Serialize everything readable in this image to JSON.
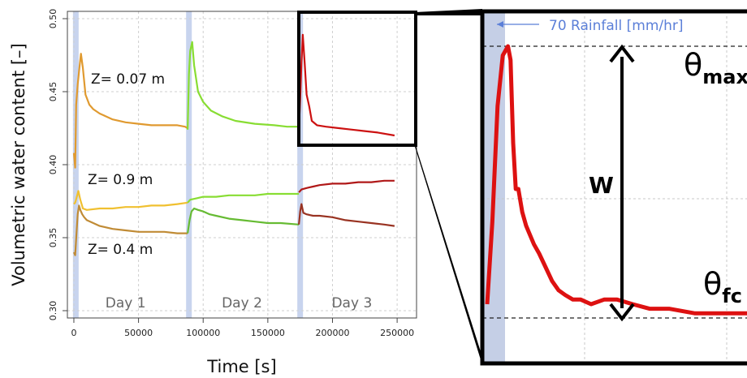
{
  "chart_data": [
    {
      "type": "line",
      "xlabel": "Time [s]",
      "ylabel": "Volumetric water content [–]",
      "xlim": [
        -5000,
        265000
      ],
      "ylim": [
        0.295,
        0.505
      ],
      "xticks": [
        0,
        50000,
        100000,
        150000,
        200000,
        250000
      ],
      "xtick_labels": [
        "0",
        "50000",
        "100000",
        "150000",
        "200000",
        "250000"
      ],
      "yticks": [
        0.3,
        0.35,
        0.4,
        0.45,
        0.5
      ],
      "ytick_labels": [
        "0.30",
        "0.35",
        "0.40",
        "0.45",
        "0.50"
      ],
      "grid": true,
      "rain_events": [
        1500,
        89000,
        175000
      ],
      "day_labels": [
        {
          "label": "Day 1",
          "x": 40000
        },
        {
          "label": "Day 2",
          "x": 130000
        },
        {
          "label": "Day 3",
          "x": 215000
        }
      ],
      "series": [
        {
          "name": "Z= 0.07 m",
          "segments": [
            {
              "color": "#e09a30",
              "x": [
                0,
                1000,
                1800,
                3000,
                4500,
                5500,
                7000,
                9000,
                12000,
                15000,
                20000,
                25000,
                30000,
                40000,
                50000,
                60000,
                70000,
                80000,
                86000,
                88000
              ],
              "y": [
                0.408,
                0.398,
                0.441,
                0.455,
                0.468,
                0.476,
                0.466,
                0.448,
                0.441,
                0.438,
                0.435,
                0.433,
                0.431,
                0.429,
                0.428,
                0.427,
                0.427,
                0.427,
                0.426,
                0.425
              ]
            },
            {
              "color": "#88dd33",
              "x": [
                88000,
                89000,
                90000,
                91500,
                93000,
                96000,
                100000,
                106000,
                115000,
                125000,
                140000,
                155000,
                165000,
                172000,
                174000
              ],
              "y": [
                0.424,
                0.462,
                0.478,
                0.484,
                0.468,
                0.45,
                0.443,
                0.437,
                0.433,
                0.43,
                0.428,
                0.427,
                0.426,
                0.426,
                0.426
              ]
            },
            {
              "color": "#cc1111",
              "x": [
                174000,
                175000,
                176000,
                177000,
                178500,
                180000,
                182000,
                184000,
                188000,
                195000,
                205000,
                215000,
                225000,
                235000,
                248000
              ],
              "y": [
                0.424,
                0.445,
                0.47,
                0.489,
                0.47,
                0.448,
                0.44,
                0.43,
                0.427,
                0.426,
                0.425,
                0.424,
                0.423,
                0.422,
                0.42
              ]
            }
          ]
        },
        {
          "name": "Z= 0.9 m",
          "segments": [
            {
              "color": "#f0c030",
              "x": [
                0,
                1000,
                2000,
                3500,
                5000,
                7000,
                10000,
                20000,
                30000,
                40000,
                50000,
                60000,
                70000,
                80000,
                88000
              ],
              "y": [
                0.373,
                0.374,
                0.377,
                0.382,
                0.376,
                0.37,
                0.369,
                0.37,
                0.37,
                0.371,
                0.371,
                0.372,
                0.372,
                0.373,
                0.374
              ]
            },
            {
              "color": "#88dd33",
              "x": [
                88000,
                90000,
                95000,
                100000,
                110000,
                120000,
                130000,
                140000,
                150000,
                160000,
                174000
              ],
              "y": [
                0.374,
                0.376,
                0.377,
                0.378,
                0.378,
                0.379,
                0.379,
                0.379,
                0.38,
                0.38,
                0.38
              ]
            },
            {
              "color": "#b01818",
              "x": [
                174000,
                176000,
                180000,
                185000,
                190000,
                200000,
                210000,
                220000,
                230000,
                240000,
                248000
              ],
              "y": [
                0.381,
                0.383,
                0.384,
                0.385,
                0.386,
                0.387,
                0.387,
                0.388,
                0.388,
                0.389,
                0.389
              ]
            }
          ]
        },
        {
          "name": "Z= 0.4 m",
          "segments": [
            {
              "color": "#c08b35",
              "x": [
                0,
                1000,
                2000,
                3000,
                4000,
                5000,
                6500,
                8000,
                10000,
                15000,
                20000,
                30000,
                40000,
                50000,
                60000,
                70000,
                80000,
                88000
              ],
              "y": [
                0.34,
                0.338,
                0.352,
                0.366,
                0.372,
                0.369,
                0.366,
                0.364,
                0.362,
                0.36,
                0.358,
                0.356,
                0.355,
                0.354,
                0.354,
                0.354,
                0.353,
                0.353
              ]
            },
            {
              "color": "#66bb33",
              "x": [
                88000,
                89500,
                91000,
                93000,
                96000,
                100000,
                105000,
                110000,
                120000,
                130000,
                140000,
                150000,
                160000,
                174000
              ],
              "y": [
                0.353,
                0.362,
                0.368,
                0.37,
                0.369,
                0.368,
                0.366,
                0.365,
                0.363,
                0.362,
                0.361,
                0.36,
                0.36,
                0.359
              ]
            },
            {
              "color": "#993322",
              "x": [
                174000,
                175000,
                176000,
                177500,
                180000,
                185000,
                190000,
                200000,
                210000,
                220000,
                230000,
                240000,
                248000
              ],
              "y": [
                0.359,
                0.368,
                0.373,
                0.367,
                0.366,
                0.365,
                0.365,
                0.364,
                0.362,
                0.361,
                0.36,
                0.359,
                0.358
              ]
            }
          ]
        }
      ],
      "annotations": [
        "Z= 0.07 m",
        "Z= 0.9 m",
        "Z= 0.4 m",
        "Day 1",
        "Day 2",
        "Day 3"
      ]
    },
    {
      "type": "line",
      "legend_label": "70 Rainfall [mm/hr]",
      "labels": {
        "width": "W",
        "theta_symbol": "θ",
        "max_subscript": "max",
        "fc_subscript": "fc"
      },
      "theta_max": 0.483,
      "theta_fc": 0.424,
      "series": [
        {
          "color": "#dd1111",
          "x": [
            0,
            4,
            8,
            12,
            16,
            18,
            20,
            22,
            24,
            27,
            30,
            33,
            36,
            40,
            45,
            50,
            55,
            60,
            66,
            72,
            80,
            90,
            100,
            112,
            125,
            140,
            160,
            180,
            200,
            220,
            240,
            260,
            280,
            300
          ],
          "y": [
            0.427,
            0.445,
            0.47,
            0.481,
            0.483,
            0.48,
            0.462,
            0.452,
            0.452,
            0.447,
            0.444,
            0.442,
            0.44,
            0.438,
            0.435,
            0.432,
            0.43,
            0.429,
            0.428,
            0.428,
            0.427,
            0.428,
            0.428,
            0.427,
            0.426,
            0.426,
            0.425,
            0.425,
            0.425,
            0.425,
            0.424,
            0.424,
            0.424,
            0.424
          ]
        }
      ]
    }
  ]
}
